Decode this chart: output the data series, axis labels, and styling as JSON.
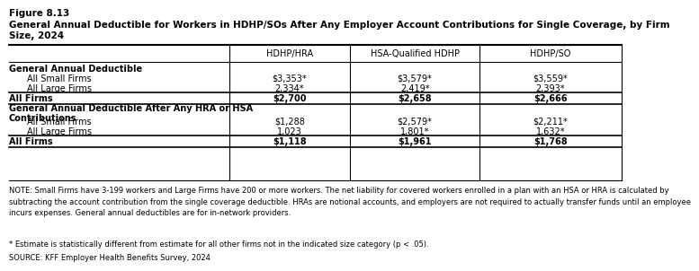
{
  "figure_label": "Figure 8.13",
  "title_line1": "General Annual Deductible for Workers in HDHP/SOs After Any Employer Account Contributions for Single Coverage, by Firm",
  "title_line2": "Size, 2024",
  "columns": [
    "",
    "HDHP/HRA",
    "HSA-Qualified HDHP",
    "HDHP/SO"
  ],
  "rows": [
    {
      "label": "General Annual Deductible",
      "bold": true,
      "values": [
        "",
        "",
        ""
      ],
      "indent": false,
      "multiline": false,
      "thick_top": false,
      "thick_bottom": false
    },
    {
      "label": "All Small Firms",
      "bold": false,
      "values": [
        "$3,353*",
        "$3,579*",
        "$3,559*"
      ],
      "indent": true,
      "multiline": false,
      "thick_top": false,
      "thick_bottom": false
    },
    {
      "label": "All Large Firms",
      "bold": false,
      "values": [
        "2,334*",
        "2,419*",
        "2,393*"
      ],
      "indent": true,
      "multiline": false,
      "thick_top": false,
      "thick_bottom": false
    },
    {
      "label": "All Firms",
      "bold": true,
      "values": [
        "$2,700",
        "$2,658",
        "$2,666"
      ],
      "indent": false,
      "multiline": false,
      "thick_top": true,
      "thick_bottom": true
    },
    {
      "label": "General Annual Deductible After Any HRA or HSA",
      "label2": "Contributions",
      "bold": true,
      "values": [
        "",
        "",
        ""
      ],
      "indent": false,
      "multiline": true,
      "thick_top": false,
      "thick_bottom": false
    },
    {
      "label": "All Small Firms",
      "bold": false,
      "values": [
        "$1,288",
        "$2,579*",
        "$2,211*"
      ],
      "indent": true,
      "multiline": false,
      "thick_top": false,
      "thick_bottom": false
    },
    {
      "label": "All Large Firms",
      "bold": false,
      "values": [
        "1,023",
        "1,801*",
        "1,632*"
      ],
      "indent": true,
      "multiline": false,
      "thick_top": false,
      "thick_bottom": false
    },
    {
      "label": "All Firms",
      "bold": true,
      "values": [
        "$1,118",
        "$1,961",
        "$1,768"
      ],
      "indent": false,
      "multiline": false,
      "thick_top": true,
      "thick_bottom": true
    }
  ],
  "note": "NOTE: Small Firms have 3-199 workers and Large Firms have 200 or more workers. The net liability for covered workers enrolled in a plan with an HSA or HRA is calculated by\nsubtracting the account contribution from the single coverage deductible. HRAs are notional accounts, and employers are not required to actually transfer funds until an employee\nincurs expenses. General annual deductibles are for in-network providers.",
  "footnote": "* Estimate is statistically different from estimate for all other firms not in the indicated size category (p < .05).",
  "source": "SOURCE: KFF Employer Health Benefits Survey, 2024",
  "bg_color": "#ffffff"
}
